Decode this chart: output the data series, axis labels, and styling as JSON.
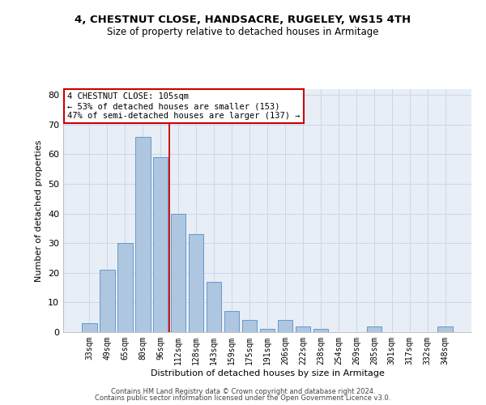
{
  "title1": "4, CHESTNUT CLOSE, HANDSACRE, RUGELEY, WS15 4TH",
  "title2": "Size of property relative to detached houses in Armitage",
  "xlabel": "Distribution of detached houses by size in Armitage",
  "ylabel": "Number of detached properties",
  "categories": [
    "33sqm",
    "49sqm",
    "65sqm",
    "80sqm",
    "96sqm",
    "112sqm",
    "128sqm",
    "143sqm",
    "159sqm",
    "175sqm",
    "191sqm",
    "206sqm",
    "222sqm",
    "238sqm",
    "254sqm",
    "269sqm",
    "285sqm",
    "301sqm",
    "317sqm",
    "332sqm",
    "348sqm"
  ],
  "values": [
    3,
    21,
    30,
    66,
    59,
    40,
    33,
    17,
    7,
    4,
    1,
    4,
    2,
    1,
    0,
    0,
    2,
    0,
    0,
    0,
    2
  ],
  "bar_color": "#aec6df",
  "bar_edge_color": "#6699cc",
  "grid_color": "#c8d8e8",
  "background_color": "#e8eef6",
  "annotation_text": "4 CHESTNUT CLOSE: 105sqm\n← 53% of detached houses are smaller (153)\n47% of semi-detached houses are larger (137) →",
  "annotation_box_color": "#ffffff",
  "annotation_box_edge": "#cc0000",
  "ylim": [
    0,
    82
  ],
  "yticks": [
    0,
    10,
    20,
    30,
    40,
    50,
    60,
    70,
    80
  ],
  "footer1": "Contains HM Land Registry data © Crown copyright and database right 2024.",
  "footer2": "Contains public sector information licensed under the Open Government Licence v3.0."
}
